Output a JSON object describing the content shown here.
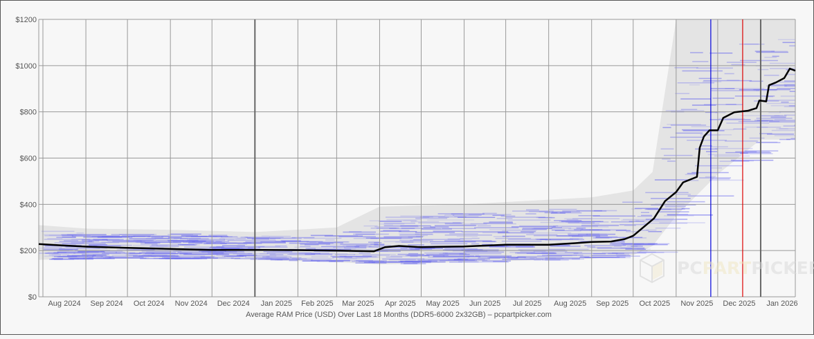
{
  "chart_data": {
    "type": "line",
    "caption": "Average RAM Price (USD) Over Last 18 Months (DDR5-6000 2x32GB) – pcpartpicker.com",
    "ylim": [
      0,
      1200
    ],
    "xlim": [
      "2024-07-29",
      "2026-01-26"
    ],
    "yticks": [
      0,
      200,
      400,
      600,
      800,
      1000,
      1200
    ],
    "ytick_labels": [
      "$0",
      "$200",
      "$400",
      "$600",
      "$800",
      "$1000",
      "$1200"
    ],
    "xtick_labels": [
      "Aug 2024",
      "Sep 2024",
      "Oct 2024",
      "Nov 2024",
      "Dec 2024",
      "Jan 2025",
      "Feb 2025",
      "Mar 2025",
      "Apr 2025",
      "May 2025",
      "Jun 2025",
      "Jul 2025",
      "Aug 2025",
      "Sep 2025",
      "Oct 2025",
      "Nov 2025",
      "Dec 2025",
      "Jan 2026"
    ],
    "month_starts": [
      "2024-08-01",
      "2024-09-01",
      "2024-10-01",
      "2024-11-01",
      "2024-12-01",
      "2025-01-01",
      "2025-02-01",
      "2025-03-01",
      "2025-04-01",
      "2025-05-01",
      "2025-06-01",
      "2025-07-01",
      "2025-08-01",
      "2025-09-01",
      "2025-10-01",
      "2025-11-01",
      "2025-12-01",
      "2026-01-01"
    ],
    "year_lines": [
      "2025-01-01",
      "2026-01-01"
    ],
    "grid": true,
    "markers": [
      {
        "date": "2025-11-26",
        "color": "#0000dd"
      },
      {
        "date": "2025-12-19",
        "color": "#dd0000"
      }
    ],
    "average": {
      "color": "#000000",
      "points": [
        [
          "2024-07-29",
          228
        ],
        [
          "2024-08-15",
          222
        ],
        [
          "2024-09-01",
          217
        ],
        [
          "2024-10-01",
          212
        ],
        [
          "2024-11-01",
          207
        ],
        [
          "2024-12-01",
          203
        ],
        [
          "2025-01-01",
          203
        ],
        [
          "2025-02-01",
          202
        ],
        [
          "2025-03-01",
          200
        ],
        [
          "2025-03-28",
          197
        ],
        [
          "2025-04-05",
          215
        ],
        [
          "2025-04-15",
          220
        ],
        [
          "2025-05-01",
          215
        ],
        [
          "2025-06-01",
          218
        ],
        [
          "2025-07-01",
          225
        ],
        [
          "2025-08-01",
          225
        ],
        [
          "2025-08-20",
          232
        ],
        [
          "2025-09-01",
          237
        ],
        [
          "2025-09-15",
          239
        ],
        [
          "2025-09-25",
          250
        ],
        [
          "2025-10-01",
          264
        ],
        [
          "2025-10-16",
          339
        ],
        [
          "2025-10-24",
          414
        ],
        [
          "2025-11-01",
          453
        ],
        [
          "2025-11-06",
          495
        ],
        [
          "2025-11-16",
          519
        ],
        [
          "2025-11-18",
          645
        ],
        [
          "2025-11-21",
          693
        ],
        [
          "2025-11-25",
          720
        ],
        [
          "2025-12-01",
          720
        ],
        [
          "2025-12-05",
          774
        ],
        [
          "2025-12-13",
          798
        ],
        [
          "2025-12-23",
          805
        ],
        [
          "2025-12-29",
          816
        ],
        [
          "2025-12-31",
          849
        ],
        [
          "2026-01-05",
          845
        ],
        [
          "2026-01-07",
          915
        ],
        [
          "2026-01-12",
          927
        ],
        [
          "2026-01-18",
          946
        ],
        [
          "2026-01-22",
          987
        ],
        [
          "2026-01-26",
          978
        ]
      ]
    },
    "range": {
      "color": "#e4e4e4",
      "product_line_color": "#6666ee",
      "points": [
        [
          "2024-07-29",
          160,
          310
        ],
        [
          "2024-09-01",
          165,
          295
        ],
        [
          "2024-11-01",
          165,
          290
        ],
        [
          "2025-01-01",
          160,
          280
        ],
        [
          "2025-03-01",
          150,
          300
        ],
        [
          "2025-04-01",
          140,
          390
        ],
        [
          "2025-06-01",
          150,
          400
        ],
        [
          "2025-08-01",
          160,
          420
        ],
        [
          "2025-09-01",
          165,
          430
        ],
        [
          "2025-10-01",
          180,
          460
        ],
        [
          "2025-10-15",
          220,
          540
        ],
        [
          "2025-11-01",
          350,
          1200
        ],
        [
          "2025-12-01",
          530,
          1200
        ],
        [
          "2026-01-01",
          680,
          1200
        ],
        [
          "2026-01-26",
          680,
          1200
        ]
      ]
    }
  },
  "watermark": {
    "left": "PC",
    "mid": "PART",
    "right": "PICKER"
  }
}
